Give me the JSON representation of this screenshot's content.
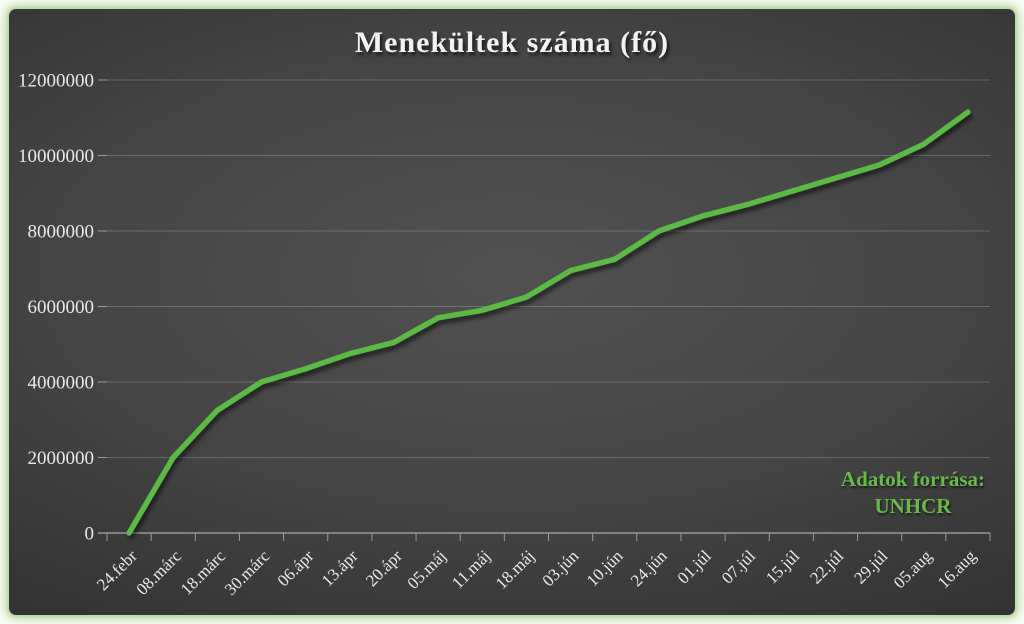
{
  "title": "Menekültek száma (fő)",
  "source_note": {
    "line1": "Adatok forrása:",
    "line2": "UNHCR"
  },
  "colors": {
    "line": "#5cb946",
    "source_text": "#68b94a",
    "title_text": "#f2f2f0",
    "axis_text": "#e9e9e6",
    "gridline": "rgba(255,255,255,0.20)",
    "axis_line": "#a9a9a9",
    "tick": "#9a9a9a",
    "frame_glow": "#cde5c0",
    "background_center": "#515151",
    "background_edge": "#242424"
  },
  "chart_data": {
    "type": "line",
    "title": "Menekültek száma (fő)",
    "categories": [
      "24.febr",
      "08.márc",
      "18.márc",
      "30.márc",
      "06.ápr",
      "13.ápr",
      "20.ápr",
      "05.máj",
      "11.máj",
      "18.máj",
      "03.jún",
      "10.jún",
      "24.jún",
      "01.júl",
      "07.júl",
      "15.júl",
      "22.júl",
      "29.júl",
      "05.aug",
      "16.aug"
    ],
    "values": [
      0,
      2000000,
      3250000,
      4000000,
      4350000,
      4750000,
      5050000,
      5700000,
      5900000,
      6250000,
      6950000,
      7250000,
      8000000,
      8400000,
      8700000,
      9050000,
      9400000,
      9750000,
      10300000,
      11150000
    ],
    "xlabel": "",
    "ylabel": "",
    "ylim": [
      0,
      12000000
    ],
    "yticks": [
      0,
      2000000,
      4000000,
      6000000,
      8000000,
      10000000,
      12000000
    ],
    "grid": "horizontal",
    "legend": "none",
    "annotation": "Adatok forrása: UNHCR"
  }
}
